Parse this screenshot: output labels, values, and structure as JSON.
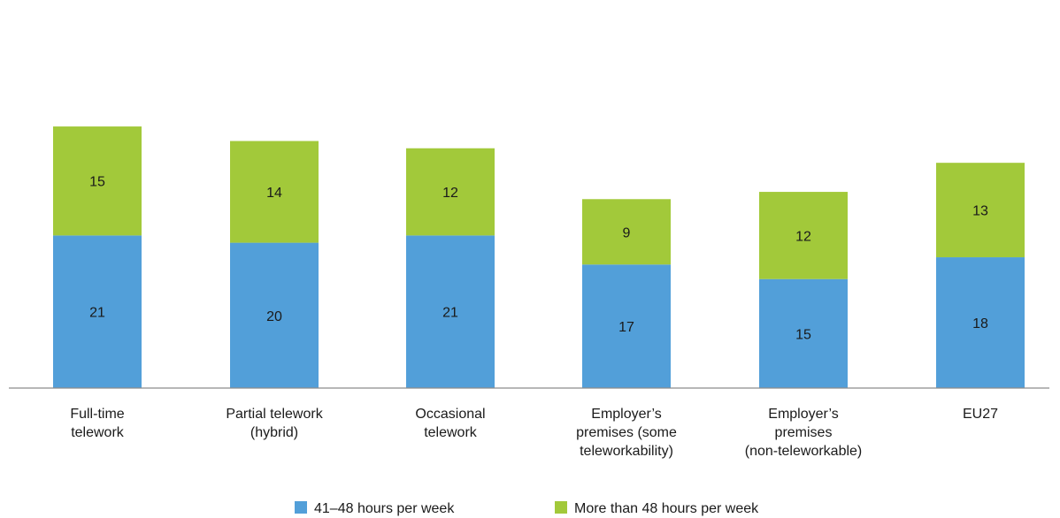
{
  "chart_data": {
    "type": "bar",
    "stacked": true,
    "categories": [
      [
        "Full-time",
        "telework"
      ],
      [
        "Partial telework",
        "(hybrid)"
      ],
      [
        "Occasional",
        "telework"
      ],
      [
        "Employer’s",
        "premises (some",
        "teleworkability)"
      ],
      [
        "Employer’s",
        "premises",
        "(non-teleworkable)"
      ],
      [
        "EU27"
      ]
    ],
    "series": [
      {
        "name": "41–48 hours per week",
        "color": "#529fd9",
        "values": [
          21,
          20,
          21,
          17,
          15,
          18
        ]
      },
      {
        "name": "More than 48 hours per week",
        "color": "#a2c93a",
        "values": [
          15,
          14,
          12,
          9,
          12,
          13
        ]
      }
    ],
    "ylim": [
      0,
      36
    ],
    "grid": false,
    "data_labels": true,
    "legend_position": "bottom"
  }
}
